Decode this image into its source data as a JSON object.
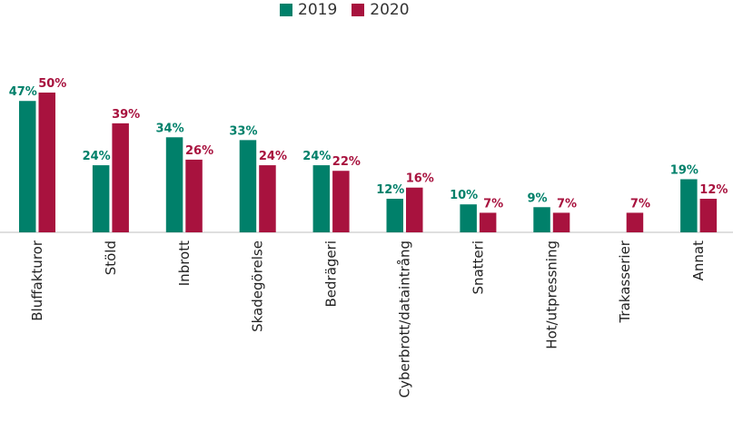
{
  "chart_data": {
    "type": "bar",
    "categories": [
      "Bluffakturor",
      "Stöld",
      "Inbrott",
      "Skadegörelse",
      "Bedrägeri",
      "Cyberbrott/dataintrång",
      "Snatteri",
      "Hot/utpressning",
      "Trakasserier",
      "Annat"
    ],
    "series": [
      {
        "name": "2019",
        "color": "#00806a",
        "values": [
          47,
          24,
          34,
          33,
          24,
          12,
          10,
          9,
          null,
          19
        ],
        "labels": [
          "47%",
          "24%",
          "34%",
          "33%",
          "24%",
          "12%",
          "10%",
          "9%",
          "",
          "19%"
        ]
      },
      {
        "name": "2020",
        "color": "#a8123e",
        "values": [
          50,
          39,
          26,
          24,
          22,
          16,
          7,
          7,
          7,
          12
        ],
        "labels": [
          "50%",
          "39%",
          "26%",
          "24%",
          "22%",
          "16%",
          "7%",
          "7%",
          "7%",
          "12%"
        ]
      }
    ],
    "ylim": [
      0,
      50
    ],
    "legend_position": "top-center",
    "grid": false
  }
}
